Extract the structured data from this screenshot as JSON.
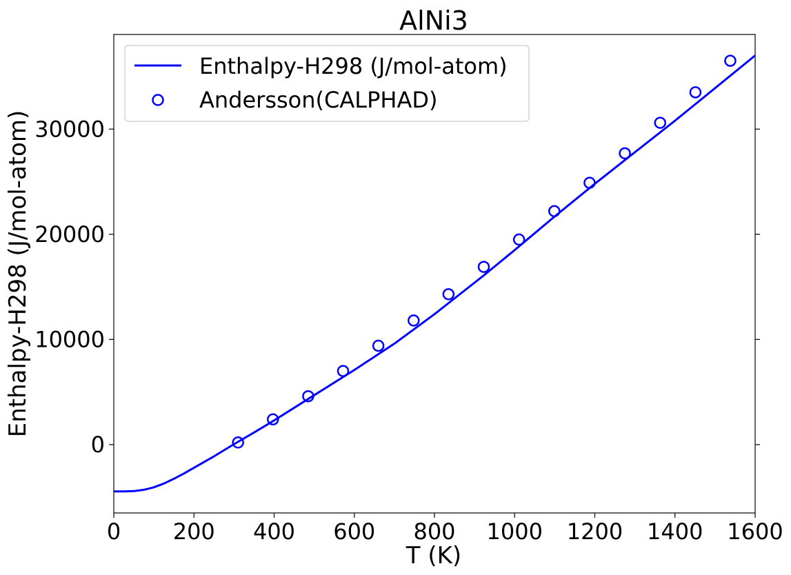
{
  "chart_data": {
    "type": "line",
    "title": "AlNi3",
    "xlabel": "T (K)",
    "ylabel": "Enthalpy-H298 (J/mol-atom)",
    "xlim": [
      0,
      1600
    ],
    "ylim": [
      -6500,
      39000
    ],
    "xticks": [
      0,
      200,
      400,
      600,
      800,
      1000,
      1200,
      1400,
      1600
    ],
    "yticks": [
      0,
      10000,
      20000,
      30000
    ],
    "grid": false,
    "legend_position": "top-left",
    "colors": {
      "series": "#0000ff"
    },
    "series": [
      {
        "name": "Enthalpy-H298 (J/mol-atom)",
        "style": "line",
        "x": [
          0,
          25,
          50,
          75,
          100,
          125,
          150,
          175,
          200,
          250,
          298,
          350,
          400,
          500,
          600,
          700,
          800,
          900,
          920,
          1000,
          1100,
          1200,
          1300,
          1400,
          1500,
          1600
        ],
        "y": [
          -4450,
          -4450,
          -4420,
          -4300,
          -4060,
          -3700,
          -3250,
          -2750,
          -2200,
          -1120,
          0,
          1150,
          2300,
          4700,
          7100,
          9600,
          12400,
          15400,
          16000,
          18500,
          21700,
          24800,
          27800,
          30800,
          33900,
          37000
        ]
      },
      {
        "name": "Andersson(CALPHAD)",
        "style": "scatter",
        "x": [
          310,
          397,
          485,
          572,
          660,
          748,
          835,
          923,
          1011,
          1099,
          1187,
          1275,
          1363,
          1451,
          1538
        ],
        "y": [
          200,
          2400,
          4600,
          7000,
          9400,
          11800,
          14300,
          16900,
          19500,
          22200,
          24900,
          27700,
          30600,
          33500,
          36500
        ]
      }
    ]
  }
}
